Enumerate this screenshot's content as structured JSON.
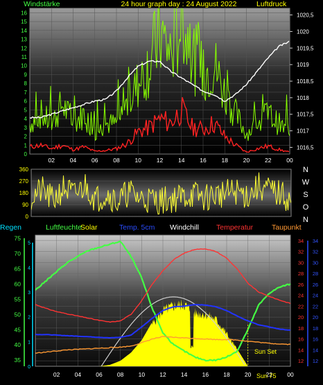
{
  "header": {
    "left_label": "Windstärke",
    "title": "24 hour graph day : 24 August 2022",
    "right_label": "Luftdruck"
  },
  "legend": [
    {
      "label": "Regen",
      "color": "#00e0ff"
    },
    {
      "label": "Luftfeuchte",
      "color": "#44ff44"
    },
    {
      "label": "Solar",
      "color": "#ffff00"
    },
    {
      "label": "Temp. 5cm",
      "color": "#2a4dff"
    },
    {
      "label": "Windchill",
      "color": "#ffffff"
    },
    {
      "label": "Temperatur",
      "color": "#ff3333"
    },
    {
      "label": "Taupunkt",
      "color": "#ff9933"
    }
  ],
  "direction_labels": [
    "N",
    "W",
    "S",
    "O",
    "N"
  ],
  "annotations": {
    "sun_set": "Sun Set",
    "sun_rise_marker": "Sun 75"
  },
  "chart_data": [
    {
      "type": "line",
      "name": "wind-pressure",
      "x_ticks": [
        "02",
        "04",
        "06",
        "08",
        "10",
        "12",
        "14",
        "16",
        "18",
        "20",
        "22",
        "00"
      ],
      "xlim": [
        0,
        24
      ],
      "ylim_left": [
        0,
        16.5
      ],
      "yticks_left": [
        0,
        1,
        2,
        3,
        4,
        5,
        6,
        7,
        8,
        9,
        10,
        11,
        12,
        13,
        14,
        15,
        16
      ],
      "ylim_right": [
        1016.3,
        1020.7
      ],
      "yticks_right": [
        "1016,5",
        "1017",
        "1017,5",
        "1018",
        "1018,5",
        "1019",
        "1019,5",
        "1020",
        "1020,5"
      ],
      "yticks_right_values": [
        1016.5,
        1017,
        1017.5,
        1018,
        1018.5,
        1019,
        1019.5,
        1020,
        1020.5
      ],
      "series": [
        {
          "color": "#ffffff",
          "axis": "right",
          "x": [
            0,
            1,
            2,
            3,
            4,
            5,
            6,
            7,
            8,
            9,
            10,
            11,
            12,
            13,
            14,
            15,
            16,
            17,
            18,
            19,
            20,
            21,
            22,
            23,
            24
          ],
          "y": [
            1017.4,
            1017.4,
            1017.5,
            1017.6,
            1017.7,
            1017.8,
            1017.9,
            1017.95,
            1018.2,
            1018.6,
            1018.95,
            1019.1,
            1019.1,
            1018.8,
            1018.6,
            1018.4,
            1018.2,
            1018.1,
            1017.9,
            1018.1,
            1018.4,
            1018.8,
            1019.2,
            1019.55,
            1019.7
          ]
        },
        {
          "color": "#88ff00",
          "axis": "left",
          "x": [
            0,
            1,
            2,
            3,
            4,
            5,
            6,
            7,
            8,
            9,
            10,
            11,
            12,
            13,
            14,
            15,
            16,
            17,
            18,
            19,
            20,
            21,
            22,
            23,
            24
          ],
          "y": [
            3,
            4,
            3,
            5,
            3,
            4,
            2,
            3,
            3,
            5,
            7,
            9,
            12,
            10,
            13,
            10,
            8,
            9,
            6,
            4,
            2,
            3,
            4,
            3,
            2
          ]
        },
        {
          "color": "#ff2222",
          "axis": "left",
          "x": [
            0,
            1,
            2,
            3,
            4,
            5,
            6,
            7,
            8,
            9,
            10,
            11,
            12,
            13,
            14,
            15,
            16,
            17,
            18,
            19,
            20,
            21,
            22,
            23,
            24
          ],
          "y": [
            0.8,
            1,
            0.6,
            1,
            0.5,
            0.8,
            0.3,
            0.4,
            0.6,
            1.2,
            2.5,
            3,
            4,
            3.5,
            5,
            3,
            2.8,
            3.5,
            2,
            1,
            0.2,
            0.6,
            0.9,
            0.5,
            0.2
          ]
        }
      ]
    },
    {
      "type": "line",
      "name": "wind-direction",
      "ylim": [
        0,
        360
      ],
      "yticks": [
        0,
        90,
        180,
        270,
        360
      ],
      "series": [
        {
          "color": "#ffff33",
          "x": [
            0,
            1,
            2,
            3,
            4,
            5,
            6,
            7,
            8,
            9,
            10,
            11,
            12,
            13,
            14,
            15,
            16,
            17,
            18,
            19,
            20,
            21,
            22,
            23,
            24
          ],
          "y": [
            150,
            200,
            120,
            220,
            160,
            240,
            130,
            180,
            110,
            190,
            140,
            130,
            120,
            135,
            150,
            170,
            140,
            165,
            175,
            190,
            160,
            230,
            200,
            170,
            120
          ]
        }
      ]
    },
    {
      "type": "line",
      "name": "temperature-humidity",
      "ylim_left": [
        33,
        76
      ],
      "yticks_left": [
        35,
        40,
        45,
        50,
        55,
        60,
        65,
        70,
        75
      ],
      "ylim_rain": [
        0,
        5.3
      ],
      "yticks_rain": [
        0,
        1,
        2,
        3,
        4,
        5
      ],
      "ylim_right": [
        11,
        35
      ],
      "yticks_right": [
        12,
        14,
        16,
        18,
        20,
        22,
        24,
        26,
        28,
        30,
        32,
        34
      ],
      "series": [
        {
          "color": "#44ff44",
          "axis": "left",
          "x": [
            0,
            1,
            2,
            3,
            4,
            5,
            6,
            7,
            8,
            9,
            10,
            11,
            12,
            13,
            14,
            15,
            16,
            17,
            18,
            19,
            20,
            21,
            22,
            23,
            24
          ],
          "y": [
            58,
            61,
            64,
            67,
            69,
            71,
            72,
            73,
            74,
            69,
            62,
            52,
            44,
            40,
            38,
            36,
            35,
            35,
            36,
            38,
            45,
            53,
            57,
            59,
            60
          ]
        },
        {
          "color": "#ff3333",
          "axis": "right",
          "x": [
            0,
            1,
            2,
            3,
            4,
            5,
            6,
            7,
            8,
            9,
            10,
            11,
            12,
            13,
            14,
            15,
            16,
            17,
            18,
            19,
            20,
            21,
            22,
            23,
            24
          ],
          "y": [
            22.3,
            21.6,
            21,
            20.6,
            20.2,
            19.8,
            19.4,
            19.1,
            19.3,
            20.5,
            23,
            26,
            28.5,
            30.5,
            31.7,
            32.4,
            32.5,
            32,
            30.8,
            28.8,
            26.2,
            24.6,
            23.8,
            23.1,
            22.5
          ]
        },
        {
          "color": "#2233ff",
          "axis": "right",
          "x": [
            0,
            1,
            2,
            3,
            4,
            5,
            6,
            7,
            8,
            9,
            10,
            11,
            12,
            13,
            14,
            15,
            16,
            17,
            18,
            19,
            20,
            21,
            22,
            23,
            24
          ],
          "y": [
            16.8,
            16.8,
            16.7,
            16.6,
            16.5,
            16.4,
            16.3,
            16.2,
            16.3,
            16.7,
            18.2,
            19.8,
            21.2,
            21.9,
            22,
            22.3,
            22.2,
            21.9,
            21.2,
            20.2,
            19.3,
            18.6,
            18.2,
            17.8,
            17.6
          ]
        },
        {
          "color": "#ff9933",
          "axis": "right",
          "x": [
            0,
            1,
            2,
            3,
            4,
            5,
            6,
            7,
            8,
            9,
            10,
            11,
            12,
            13,
            14,
            15,
            16,
            17,
            18,
            19,
            20,
            21,
            22,
            23,
            24
          ],
          "y": [
            13.4,
            13.6,
            13.8,
            14,
            14.1,
            14.2,
            14.3,
            14.4,
            14.5,
            14.7,
            15.3,
            16,
            16.4,
            16.3,
            16.2,
            16.1,
            16,
            15.9,
            15.9,
            15.8,
            15.6,
            15.4,
            15.2,
            15.1,
            15
          ]
        },
        {
          "color": "#ffff00",
          "axis": "solar",
          "fill": true,
          "x": [
            6,
            7,
            8,
            9,
            10,
            11,
            12,
            13,
            14,
            15,
            16,
            17,
            18,
            19,
            20
          ],
          "y": [
            0,
            0.02,
            0.08,
            0.2,
            0.38,
            0.65,
            0.85,
            0.93,
            0.95,
            0.82,
            0.8,
            0.72,
            0.5,
            0.25,
            0
          ]
        }
      ]
    }
  ]
}
